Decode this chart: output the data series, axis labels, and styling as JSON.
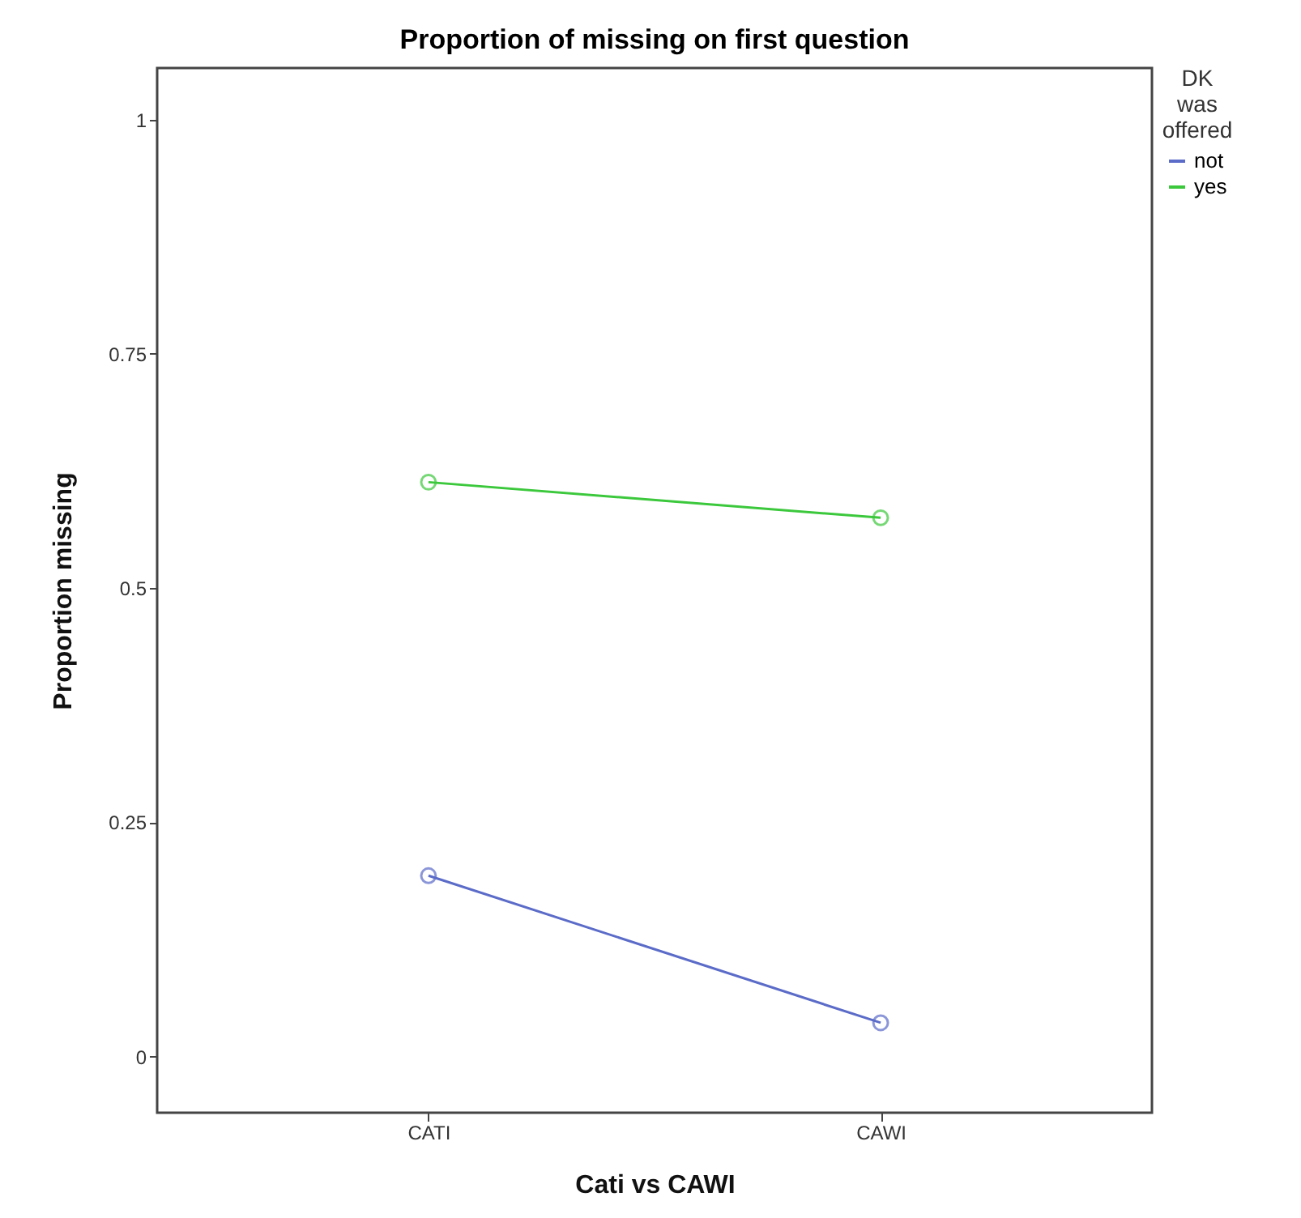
{
  "chart_data": {
    "type": "line",
    "title": "Proportion of missing on first question",
    "xlabel": "Cati vs CAWI",
    "ylabel": "Proportion missing",
    "legend_title": "DK was offered",
    "categories": [
      "CATI",
      "CAWI"
    ],
    "series": [
      {
        "name": "not",
        "color": "#5b6bc8",
        "values": [
          0.193,
          0.036
        ]
      },
      {
        "name": "yes",
        "color": "#3cc83c",
        "values": [
          0.613,
          0.575
        ]
      }
    ],
    "ylim": [
      -0.06,
      1.055
    ],
    "yticks": [
      0,
      0.25,
      0.5,
      0.75,
      1
    ],
    "grid": false,
    "legend": "top right",
    "marker": "circle",
    "line_style": "solid"
  }
}
